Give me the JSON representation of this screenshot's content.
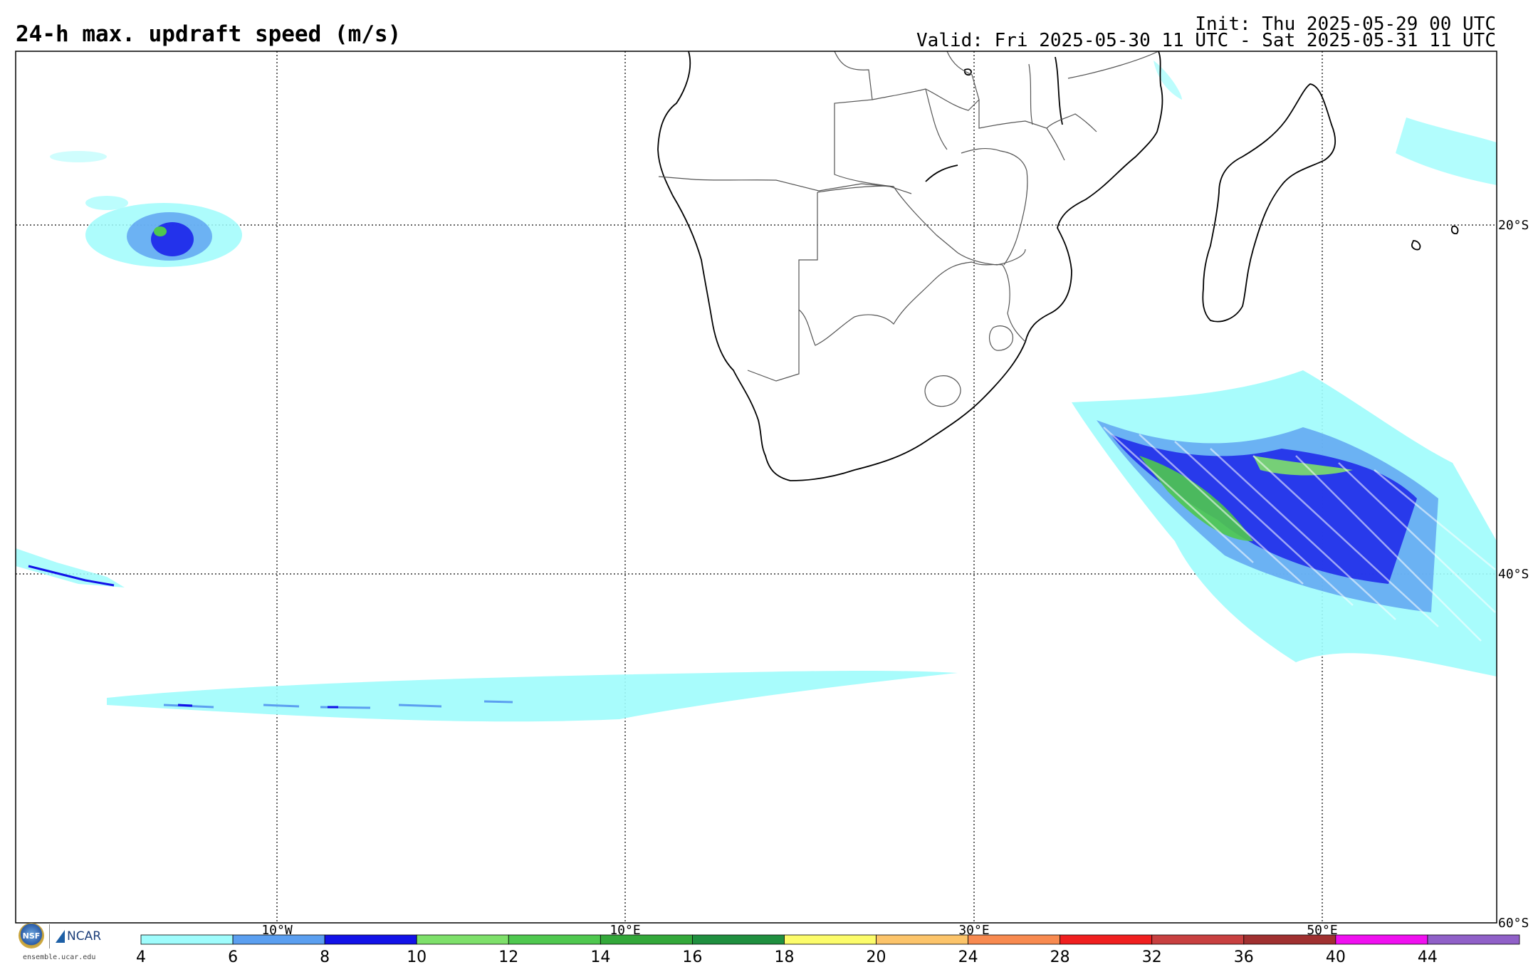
{
  "header": {
    "title": "24-h max. updraft speed (m/s)",
    "init": "Init: Thu 2025-05-29 00 UTC",
    "valid": "Valid: Fri 2025-05-30 11 UTC - Sat 2025-05-31 11 UTC"
  },
  "map": {
    "extent": {
      "lon_min": -25,
      "lon_max": 60,
      "lat_min": -60,
      "lat_max": -10
    },
    "graticule": {
      "meridians": [
        -10,
        10,
        30,
        50
      ],
      "parallels": [
        -20,
        -40
      ]
    },
    "lon_labels": [
      "10°W",
      "10°E",
      "30°E",
      "50°E"
    ],
    "lat_labels": [
      "20°S",
      "40°S",
      "60°S"
    ]
  },
  "colorbar": {
    "ticks": [
      "4",
      "6",
      "8",
      "10",
      "12",
      "14",
      "16",
      "18",
      "20",
      "24",
      "28",
      "32",
      "36",
      "40",
      "44"
    ],
    "colors": [
      "#9ffcfc",
      "#5b9ff0",
      "#1212e8",
      "#7ee06a",
      "#4fc84f",
      "#33a83a",
      "#1f8f3f",
      "#fcfc6a",
      "#fcc46a",
      "#f88a50",
      "#f01f1f",
      "#c84040",
      "#a03030",
      "#f010f0",
      "#9060c8"
    ]
  },
  "logos": {
    "nsf_text": "NSF",
    "ncar_text": "NCAR",
    "url": "ensemble.ucar.edu"
  }
}
